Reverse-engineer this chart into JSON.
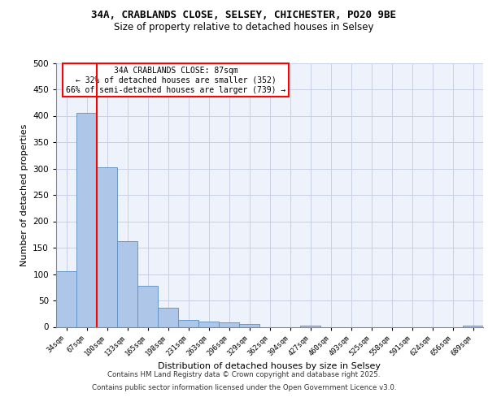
{
  "title_line1": "34A, CRABLANDS CLOSE, SELSEY, CHICHESTER, PO20 9BE",
  "title_line2": "Size of property relative to detached houses in Selsey",
  "xlabel": "Distribution of detached houses by size in Selsey",
  "ylabel": "Number of detached properties",
  "categories": [
    "34sqm",
    "67sqm",
    "100sqm",
    "133sqm",
    "165sqm",
    "198sqm",
    "231sqm",
    "263sqm",
    "296sqm",
    "329sqm",
    "362sqm",
    "394sqm",
    "427sqm",
    "460sqm",
    "493sqm",
    "525sqm",
    "558sqm",
    "591sqm",
    "624sqm",
    "656sqm",
    "689sqm"
  ],
  "values": [
    105,
    405,
    303,
    163,
    77,
    36,
    13,
    10,
    8,
    5,
    0,
    0,
    2,
    0,
    0,
    0,
    0,
    0,
    0,
    0,
    3
  ],
  "bar_color": "#aec6e8",
  "bar_edge_color": "#5a8fc2",
  "red_line_x": 1.5,
  "annotation_line1": "34A CRABLANDS CLOSE: 87sqm",
  "annotation_line2": "← 32% of detached houses are smaller (352)",
  "annotation_line3": "66% of semi-detached houses are larger (739) →",
  "annotation_box_color": "white",
  "annotation_box_edge": "red",
  "ylim": [
    0,
    500
  ],
  "yticks": [
    0,
    50,
    100,
    150,
    200,
    250,
    300,
    350,
    400,
    450,
    500
  ],
  "footer1": "Contains HM Land Registry data © Crown copyright and database right 2025.",
  "footer2": "Contains public sector information licensed under the Open Government Licence v3.0.",
  "bg_color": "#eef2fb",
  "grid_color": "#c8d0e8"
}
